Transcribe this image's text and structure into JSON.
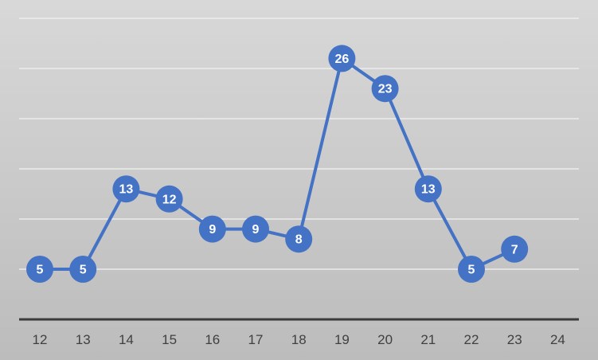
{
  "chart_data": {
    "type": "line",
    "categories": [
      "12",
      "13",
      "14",
      "15",
      "16",
      "17",
      "18",
      "19",
      "20",
      "21",
      "22",
      "23",
      "24"
    ],
    "series": [
      {
        "values": [
          5,
          5,
          13,
          12,
          9,
          9,
          8,
          26,
          23,
          13,
          5,
          7,
          null
        ],
        "color": "#4472c4"
      }
    ],
    "title": "",
    "xlabel": "",
    "ylabel": "",
    "ylim": [
      0,
      30
    ],
    "grid": true,
    "gridline_values": [
      5,
      10,
      15,
      20,
      25,
      30
    ],
    "legend": "none"
  }
}
